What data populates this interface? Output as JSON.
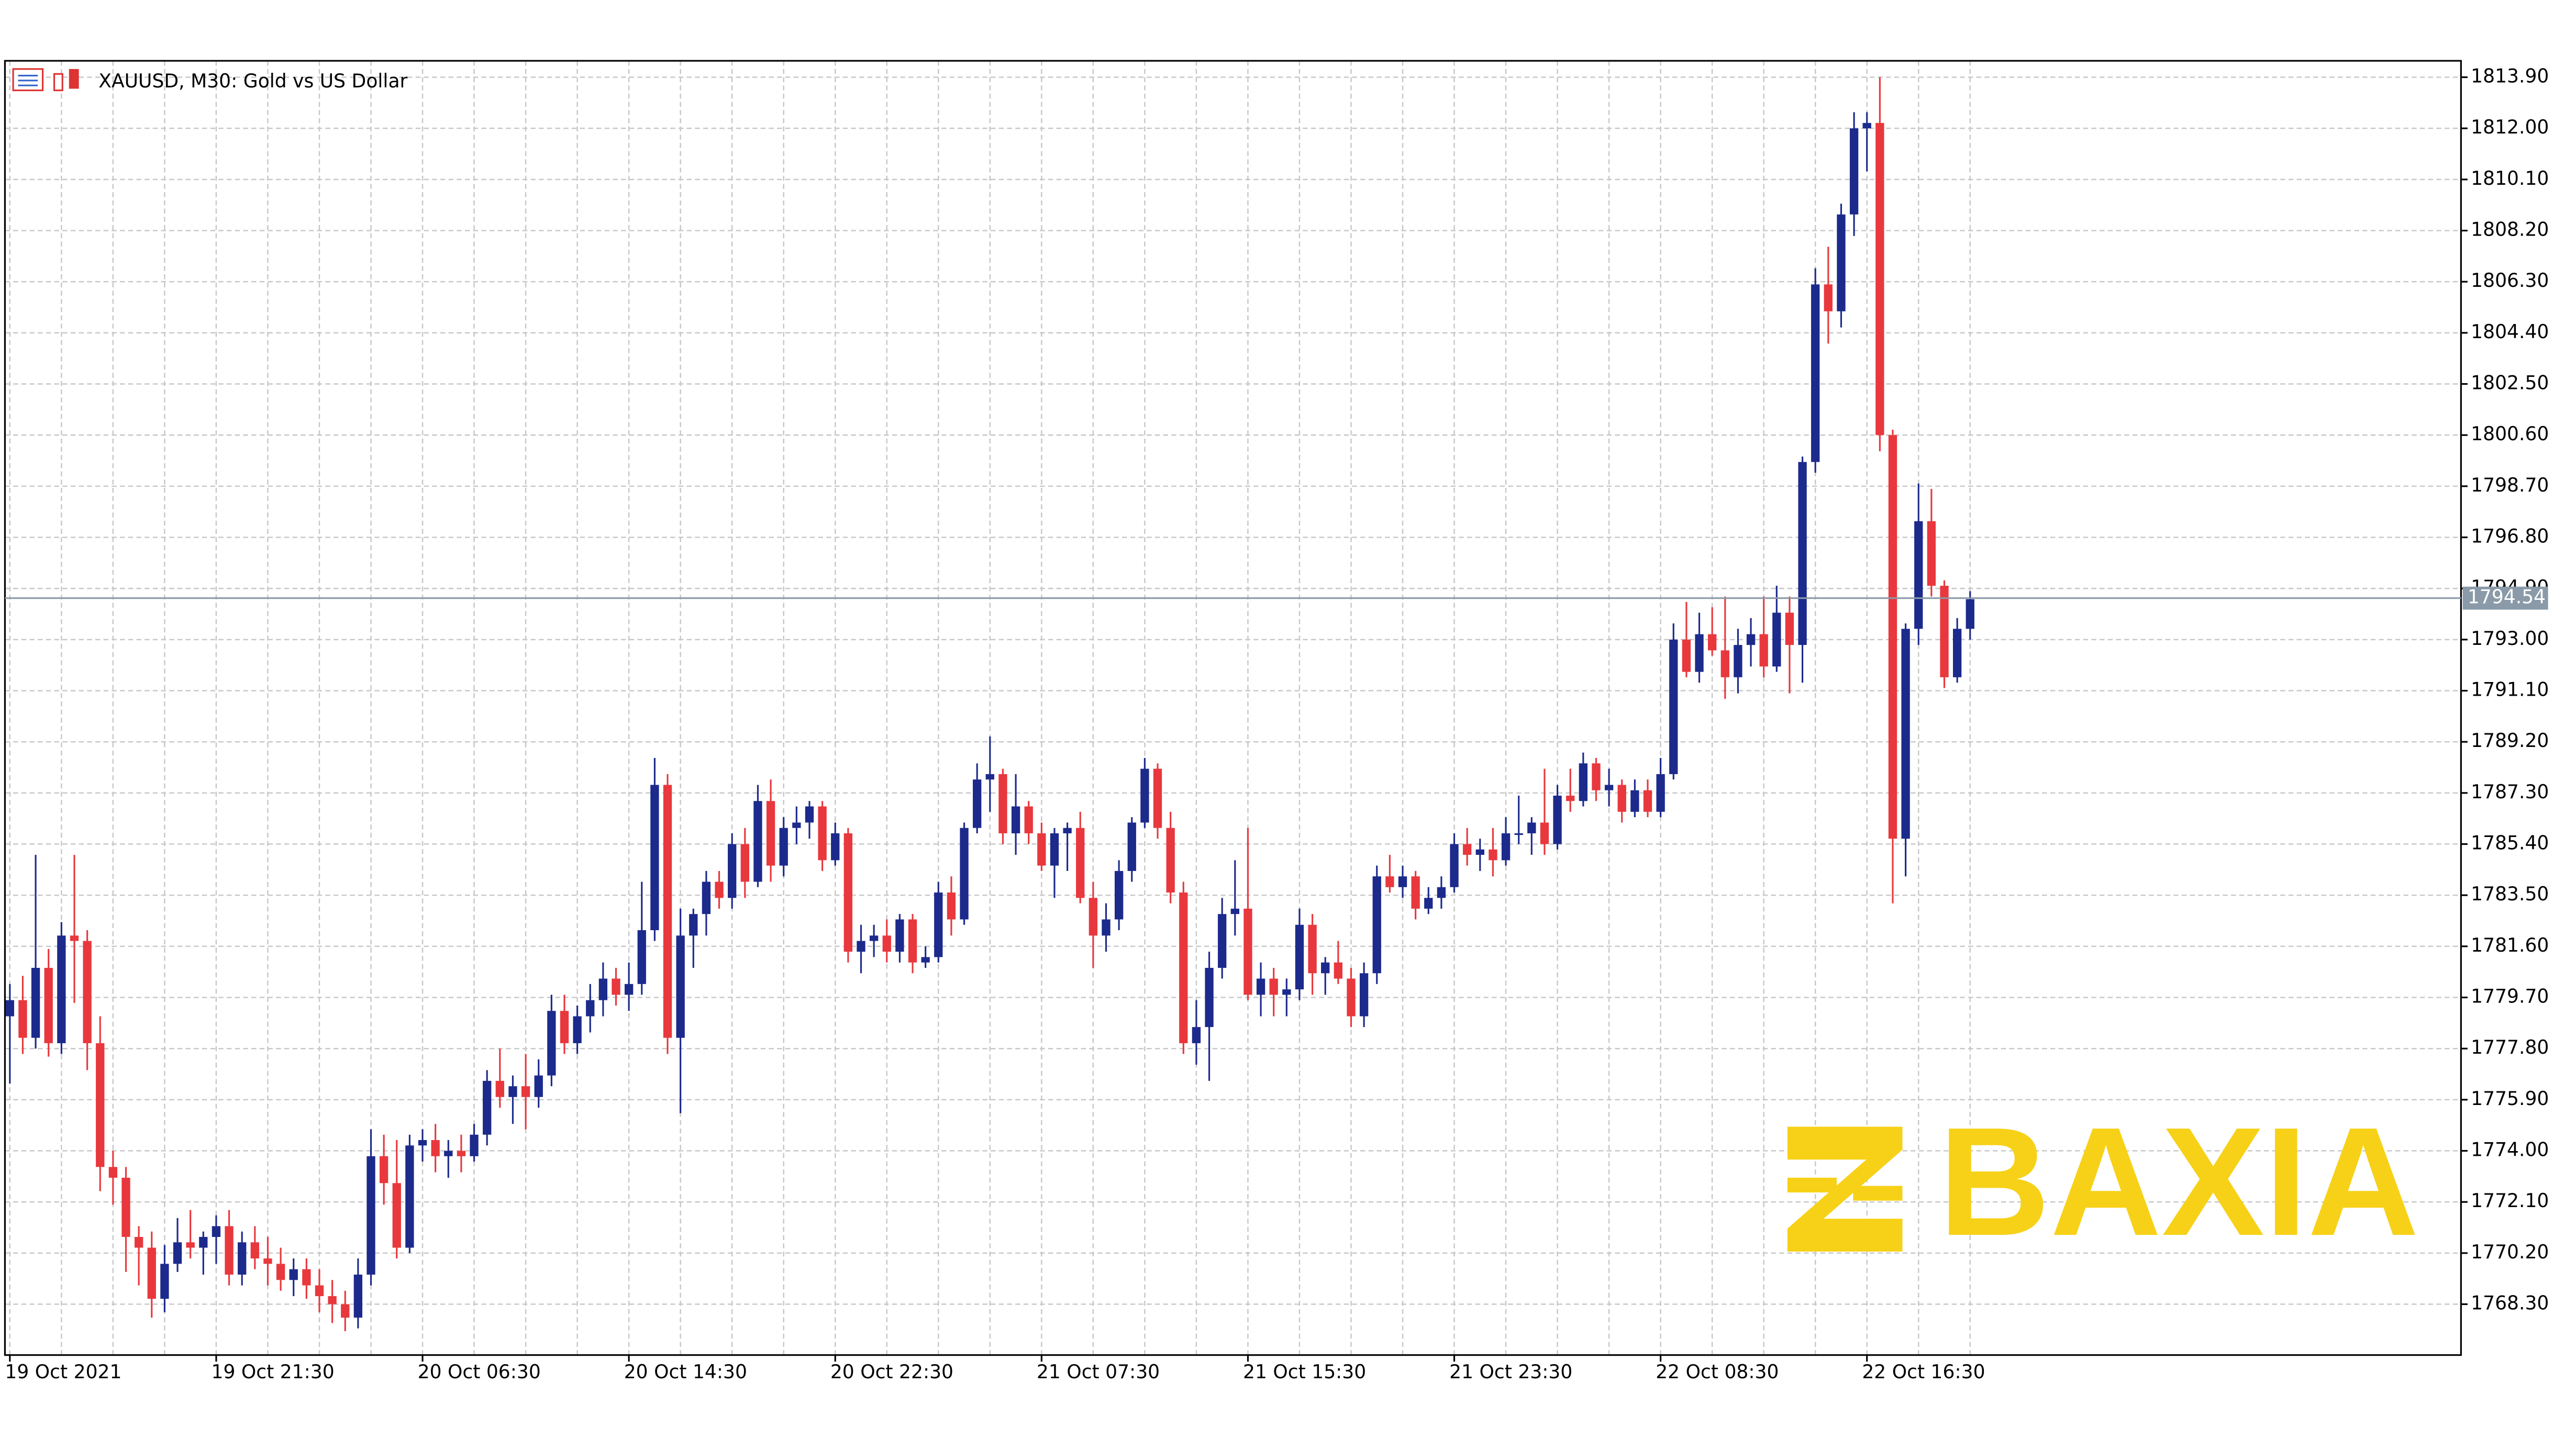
{
  "chart_data": {
    "type": "candlestick",
    "title": "XAUUSD, M30:  Gold vs US Dollar",
    "categories": [
      "19 Oct 2021",
      null,
      null,
      null,
      null,
      null,
      null,
      null,
      null,
      null,
      null,
      null,
      null,
      null,
      null,
      null,
      "19 Oct 21:30",
      null,
      null,
      null,
      null,
      null,
      null,
      null,
      null,
      null,
      null,
      null,
      null,
      null,
      null,
      null,
      "20 Oct 06:30",
      null,
      null,
      null,
      null,
      null,
      null,
      null,
      null,
      null,
      null,
      null,
      null,
      null,
      null,
      null,
      "20 Oct 14:30",
      null,
      null,
      null,
      null,
      null,
      null,
      null,
      null,
      null,
      null,
      null,
      null,
      null,
      null,
      null,
      "20 Oct 22:30",
      null,
      null,
      null,
      null,
      null,
      null,
      null,
      null,
      null,
      null,
      null,
      null,
      null,
      null,
      null,
      "21 Oct 07:30",
      null,
      null,
      null,
      null,
      null,
      null,
      null,
      null,
      null,
      null,
      null,
      null,
      null,
      null,
      null,
      "21 Oct 15:30",
      null,
      null,
      null,
      null,
      null,
      null,
      null,
      null,
      null,
      null,
      null,
      null,
      null,
      null,
      null,
      "21 Oct 23:30",
      null,
      null,
      null,
      null,
      null,
      null,
      null,
      null,
      null,
      null,
      null,
      null,
      null,
      null,
      null,
      "22 Oct 08:30",
      null,
      null,
      null,
      null,
      null,
      null,
      null,
      null,
      null,
      null,
      null,
      null,
      null,
      null,
      null,
      "22 Oct 16:30",
      null,
      null,
      null,
      null,
      null,
      null,
      null,
      null
    ],
    "ohlc": [
      [
        1779.0,
        1780.2,
        1776.5,
        1779.6
      ],
      [
        1779.6,
        1780.5,
        1777.6,
        1778.2
      ],
      [
        1778.2,
        1785.0,
        1777.8,
        1780.8
      ],
      [
        1780.8,
        1781.5,
        1777.5,
        1778.0
      ],
      [
        1778.0,
        1782.5,
        1777.6,
        1782.0
      ],
      [
        1782.0,
        1785.0,
        1779.5,
        1781.8
      ],
      [
        1781.8,
        1782.2,
        1777.0,
        1778.0
      ],
      [
        1778.0,
        1779.0,
        1772.5,
        1773.4
      ],
      [
        1773.4,
        1774.0,
        1772.0,
        1773.0
      ],
      [
        1773.0,
        1773.4,
        1769.5,
        1770.8
      ],
      [
        1770.8,
        1771.2,
        1769.0,
        1770.4
      ],
      [
        1770.4,
        1771.0,
        1767.8,
        1768.5
      ],
      [
        1768.5,
        1770.5,
        1768.0,
        1769.8
      ],
      [
        1769.8,
        1771.5,
        1769.5,
        1770.6
      ],
      [
        1770.6,
        1771.8,
        1770.0,
        1770.4
      ],
      [
        1770.4,
        1771.0,
        1769.4,
        1770.8
      ],
      [
        1770.8,
        1771.6,
        1769.8,
        1771.2
      ],
      [
        1771.2,
        1771.8,
        1769.0,
        1769.4
      ],
      [
        1769.4,
        1771.0,
        1769.0,
        1770.6
      ],
      [
        1770.6,
        1771.2,
        1769.6,
        1770.0
      ],
      [
        1770.0,
        1770.8,
        1769.0,
        1769.8
      ],
      [
        1769.8,
        1770.4,
        1768.8,
        1769.2
      ],
      [
        1769.2,
        1770.0,
        1768.6,
        1769.6
      ],
      [
        1769.6,
        1770.0,
        1768.5,
        1769.0
      ],
      [
        1769.0,
        1769.6,
        1768.0,
        1768.6
      ],
      [
        1768.6,
        1769.2,
        1767.6,
        1768.3
      ],
      [
        1768.3,
        1768.8,
        1767.3,
        1767.8
      ],
      [
        1767.8,
        1770.0,
        1767.4,
        1769.4
      ],
      [
        1769.4,
        1774.8,
        1769.0,
        1773.8
      ],
      [
        1773.8,
        1774.6,
        1772.0,
        1772.8
      ],
      [
        1772.8,
        1774.4,
        1770.0,
        1770.4
      ],
      [
        1770.4,
        1774.6,
        1770.2,
        1774.2
      ],
      [
        1774.2,
        1774.8,
        1773.6,
        1774.4
      ],
      [
        1774.4,
        1775.0,
        1773.2,
        1773.8
      ],
      [
        1773.8,
        1774.4,
        1773.0,
        1774.0
      ],
      [
        1774.0,
        1774.6,
        1773.2,
        1773.8
      ],
      [
        1773.8,
        1775.0,
        1773.6,
        1774.6
      ],
      [
        1774.6,
        1777.0,
        1774.2,
        1776.6
      ],
      [
        1776.6,
        1777.8,
        1775.6,
        1776.0
      ],
      [
        1776.0,
        1776.8,
        1775.0,
        1776.4
      ],
      [
        1776.4,
        1777.6,
        1774.8,
        1776.0
      ],
      [
        1776.0,
        1777.4,
        1775.6,
        1776.8
      ],
      [
        1776.8,
        1779.8,
        1776.4,
        1779.2
      ],
      [
        1779.2,
        1779.8,
        1777.6,
        1778.0
      ],
      [
        1778.0,
        1779.4,
        1777.6,
        1779.0
      ],
      [
        1779.0,
        1780.2,
        1778.4,
        1779.6
      ],
      [
        1779.6,
        1781.0,
        1779.0,
        1780.4
      ],
      [
        1780.4,
        1780.8,
        1779.4,
        1779.8
      ],
      [
        1779.8,
        1781.0,
        1779.2,
        1780.2
      ],
      [
        1780.2,
        1784.0,
        1779.8,
        1782.2
      ],
      [
        1782.2,
        1788.6,
        1781.8,
        1787.6
      ],
      [
        1787.6,
        1788.0,
        1777.6,
        1778.2
      ],
      [
        1778.2,
        1783.0,
        1775.4,
        1782.0
      ],
      [
        1782.0,
        1783.0,
        1780.8,
        1782.8
      ],
      [
        1782.8,
        1784.4,
        1782.0,
        1784.0
      ],
      [
        1784.0,
        1784.4,
        1783.0,
        1783.4
      ],
      [
        1783.4,
        1785.8,
        1783.0,
        1785.4
      ],
      [
        1785.4,
        1786.0,
        1783.4,
        1784.0
      ],
      [
        1784.0,
        1787.6,
        1783.8,
        1787.0
      ],
      [
        1787.0,
        1787.8,
        1784.0,
        1784.6
      ],
      [
        1784.6,
        1786.4,
        1784.2,
        1786.0
      ],
      [
        1786.0,
        1786.8,
        1785.4,
        1786.2
      ],
      [
        1786.2,
        1787.0,
        1785.6,
        1786.8
      ],
      [
        1786.8,
        1787.0,
        1784.4,
        1784.8
      ],
      [
        1784.8,
        1786.2,
        1784.6,
        1785.8
      ],
      [
        1785.8,
        1786.0,
        1781.0,
        1781.4
      ],
      [
        1781.4,
        1782.4,
        1780.6,
        1781.8
      ],
      [
        1781.8,
        1782.4,
        1781.2,
        1782.0
      ],
      [
        1782.0,
        1782.6,
        1781.0,
        1781.4
      ],
      [
        1781.4,
        1782.8,
        1781.0,
        1782.6
      ],
      [
        1782.6,
        1782.8,
        1780.6,
        1781.0
      ],
      [
        1781.0,
        1781.6,
        1780.8,
        1781.2
      ],
      [
        1781.2,
        1784.0,
        1781.0,
        1783.6
      ],
      [
        1783.6,
        1784.2,
        1782.0,
        1782.6
      ],
      [
        1782.6,
        1786.2,
        1782.4,
        1786.0
      ],
      [
        1786.0,
        1788.4,
        1785.8,
        1787.8
      ],
      [
        1787.8,
        1789.4,
        1786.6,
        1788.0
      ],
      [
        1788.0,
        1788.2,
        1785.4,
        1785.8
      ],
      [
        1785.8,
        1788.0,
        1785.0,
        1786.8
      ],
      [
        1786.8,
        1787.0,
        1785.4,
        1785.8
      ],
      [
        1785.8,
        1786.2,
        1784.4,
        1784.6
      ],
      [
        1784.6,
        1786.0,
        1783.4,
        1785.8
      ],
      [
        1785.8,
        1786.2,
        1784.4,
        1786.0
      ],
      [
        1786.0,
        1786.6,
        1783.2,
        1783.4
      ],
      [
        1783.4,
        1784.0,
        1780.8,
        1782.0
      ],
      [
        1782.0,
        1783.2,
        1781.4,
        1782.6
      ],
      [
        1782.6,
        1784.8,
        1782.2,
        1784.4
      ],
      [
        1784.4,
        1786.4,
        1784.0,
        1786.2
      ],
      [
        1786.2,
        1788.6,
        1786.0,
        1788.2
      ],
      [
        1788.2,
        1788.4,
        1785.6,
        1786.0
      ],
      [
        1786.0,
        1786.6,
        1783.2,
        1783.6
      ],
      [
        1783.6,
        1784.0,
        1777.6,
        1778.0
      ],
      [
        1778.0,
        1779.6,
        1777.2,
        1778.6
      ],
      [
        1778.6,
        1781.4,
        1776.6,
        1780.8
      ],
      [
        1780.8,
        1783.4,
        1780.4,
        1782.8
      ],
      [
        1782.8,
        1784.8,
        1782.0,
        1783.0
      ],
      [
        1783.0,
        1786.0,
        1779.6,
        1779.8
      ],
      [
        1779.8,
        1781.0,
        1779.0,
        1780.4
      ],
      [
        1780.4,
        1780.8,
        1779.0,
        1779.8
      ],
      [
        1779.8,
        1780.4,
        1779.0,
        1780.0
      ],
      [
        1780.0,
        1783.0,
        1779.6,
        1782.4
      ],
      [
        1782.4,
        1782.8,
        1779.8,
        1780.6
      ],
      [
        1780.6,
        1781.2,
        1779.8,
        1781.0
      ],
      [
        1781.0,
        1781.8,
        1780.2,
        1780.4
      ],
      [
        1780.4,
        1780.8,
        1778.6,
        1779.0
      ],
      [
        1779.0,
        1781.0,
        1778.6,
        1780.6
      ],
      [
        1780.6,
        1784.6,
        1780.2,
        1784.2
      ],
      [
        1784.2,
        1785.0,
        1783.6,
        1783.8
      ],
      [
        1783.8,
        1784.6,
        1783.4,
        1784.2
      ],
      [
        1784.2,
        1784.4,
        1782.6,
        1783.0
      ],
      [
        1783.0,
        1783.8,
        1782.8,
        1783.4
      ],
      [
        1783.4,
        1784.2,
        1783.0,
        1783.8
      ],
      [
        1783.8,
        1785.8,
        1783.6,
        1785.4
      ],
      [
        1785.4,
        1786.0,
        1784.6,
        1785.0
      ],
      [
        1785.0,
        1785.6,
        1784.4,
        1785.2
      ],
      [
        1785.2,
        1786.0,
        1784.2,
        1784.8
      ],
      [
        1784.8,
        1786.4,
        1784.6,
        1785.8
      ],
      [
        1785.8,
        1787.2,
        1785.4,
        1785.8
      ],
      [
        1785.8,
        1786.4,
        1785.0,
        1786.2
      ],
      [
        1786.2,
        1788.2,
        1785.0,
        1785.4
      ],
      [
        1785.4,
        1787.6,
        1785.2,
        1787.2
      ],
      [
        1787.2,
        1788.2,
        1786.6,
        1787.0
      ],
      [
        1787.0,
        1788.8,
        1786.8,
        1788.4
      ],
      [
        1788.4,
        1788.6,
        1787.0,
        1787.4
      ],
      [
        1787.4,
        1788.2,
        1786.8,
        1787.6
      ],
      [
        1787.6,
        1787.8,
        1786.2,
        1786.6
      ],
      [
        1786.6,
        1787.8,
        1786.4,
        1787.4
      ],
      [
        1787.4,
        1787.8,
        1786.4,
        1786.6
      ],
      [
        1786.6,
        1788.6,
        1786.4,
        1788.0
      ],
      [
        1788.0,
        1793.6,
        1787.8,
        1793.0
      ],
      [
        1793.0,
        1794.4,
        1791.6,
        1791.8
      ],
      [
        1791.8,
        1794.0,
        1791.4,
        1793.2
      ],
      [
        1793.2,
        1794.2,
        1792.4,
        1792.6
      ],
      [
        1792.6,
        1794.6,
        1790.8,
        1791.6
      ],
      [
        1791.6,
        1793.4,
        1791.0,
        1792.8
      ],
      [
        1792.8,
        1793.8,
        1792.0,
        1793.2
      ],
      [
        1793.2,
        1794.6,
        1791.6,
        1792.0
      ],
      [
        1792.0,
        1795.0,
        1791.8,
        1794.0
      ],
      [
        1794.0,
        1794.6,
        1791.0,
        1792.8
      ],
      [
        1792.8,
        1799.8,
        1791.4,
        1799.6
      ],
      [
        1799.6,
        1806.8,
        1799.2,
        1806.2
      ],
      [
        1806.2,
        1807.6,
        1804.0,
        1805.2
      ],
      [
        1805.2,
        1809.2,
        1804.6,
        1808.8
      ],
      [
        1808.8,
        1812.6,
        1808.0,
        1812.0
      ],
      [
        1812.0,
        1812.6,
        1810.4,
        1812.2
      ],
      [
        1812.2,
        1813.9,
        1800.0,
        1800.6
      ],
      [
        1800.6,
        1800.8,
        1783.2,
        1785.6
      ],
      [
        1785.6,
        1793.6,
        1784.2,
        1793.4
      ],
      [
        1793.4,
        1798.8,
        1792.8,
        1797.4
      ],
      [
        1797.4,
        1798.6,
        1794.6,
        1795.0
      ],
      [
        1795.0,
        1795.2,
        1791.2,
        1791.6
      ],
      [
        1791.6,
        1793.8,
        1791.4,
        1793.4
      ],
      [
        1793.4,
        1794.8,
        1793.0,
        1794.5
      ]
    ],
    "up_color": "#1c2a8c",
    "down_color": "#e8383d",
    "ylim": [
      1766.41,
      1814.51
    ],
    "yticks": [
      {
        "value": 1813.9,
        "label": "1813.90"
      },
      {
        "value": 1812.0,
        "label": "1812.00"
      },
      {
        "value": 1810.1,
        "label": "1810.10"
      },
      {
        "value": 1808.2,
        "label": "1808.20"
      },
      {
        "value": 1806.3,
        "label": "1806.30"
      },
      {
        "value": 1804.4,
        "label": "1804.40"
      },
      {
        "value": 1802.5,
        "label": "1802.50"
      },
      {
        "value": 1800.6,
        "label": "1800.60"
      },
      {
        "value": 1798.7,
        "label": "1798.70"
      },
      {
        "value": 1796.8,
        "label": "1796.80"
      },
      {
        "value": 1794.9,
        "label": "1794.90"
      },
      {
        "value": 1793.0,
        "label": "1793.00"
      },
      {
        "value": 1791.1,
        "label": "1791.10"
      },
      {
        "value": 1789.2,
        "label": "1789.20"
      },
      {
        "value": 1787.3,
        "label": "1787.30"
      },
      {
        "value": 1785.4,
        "label": "1785.40"
      },
      {
        "value": 1783.5,
        "label": "1783.50"
      },
      {
        "value": 1781.6,
        "label": "1781.60"
      },
      {
        "value": 1779.7,
        "label": "1779.70"
      },
      {
        "value": 1777.8,
        "label": "1777.80"
      },
      {
        "value": 1775.9,
        "label": "1775.90"
      },
      {
        "value": 1774.0,
        "label": "1774.00"
      },
      {
        "value": 1772.1,
        "label": "1772.10"
      },
      {
        "value": 1770.2,
        "label": "1770.20"
      },
      {
        "value": 1768.3,
        "label": "1768.30"
      }
    ],
    "grid": true,
    "last_price": 1794.54,
    "watermark": "BAXIA"
  }
}
